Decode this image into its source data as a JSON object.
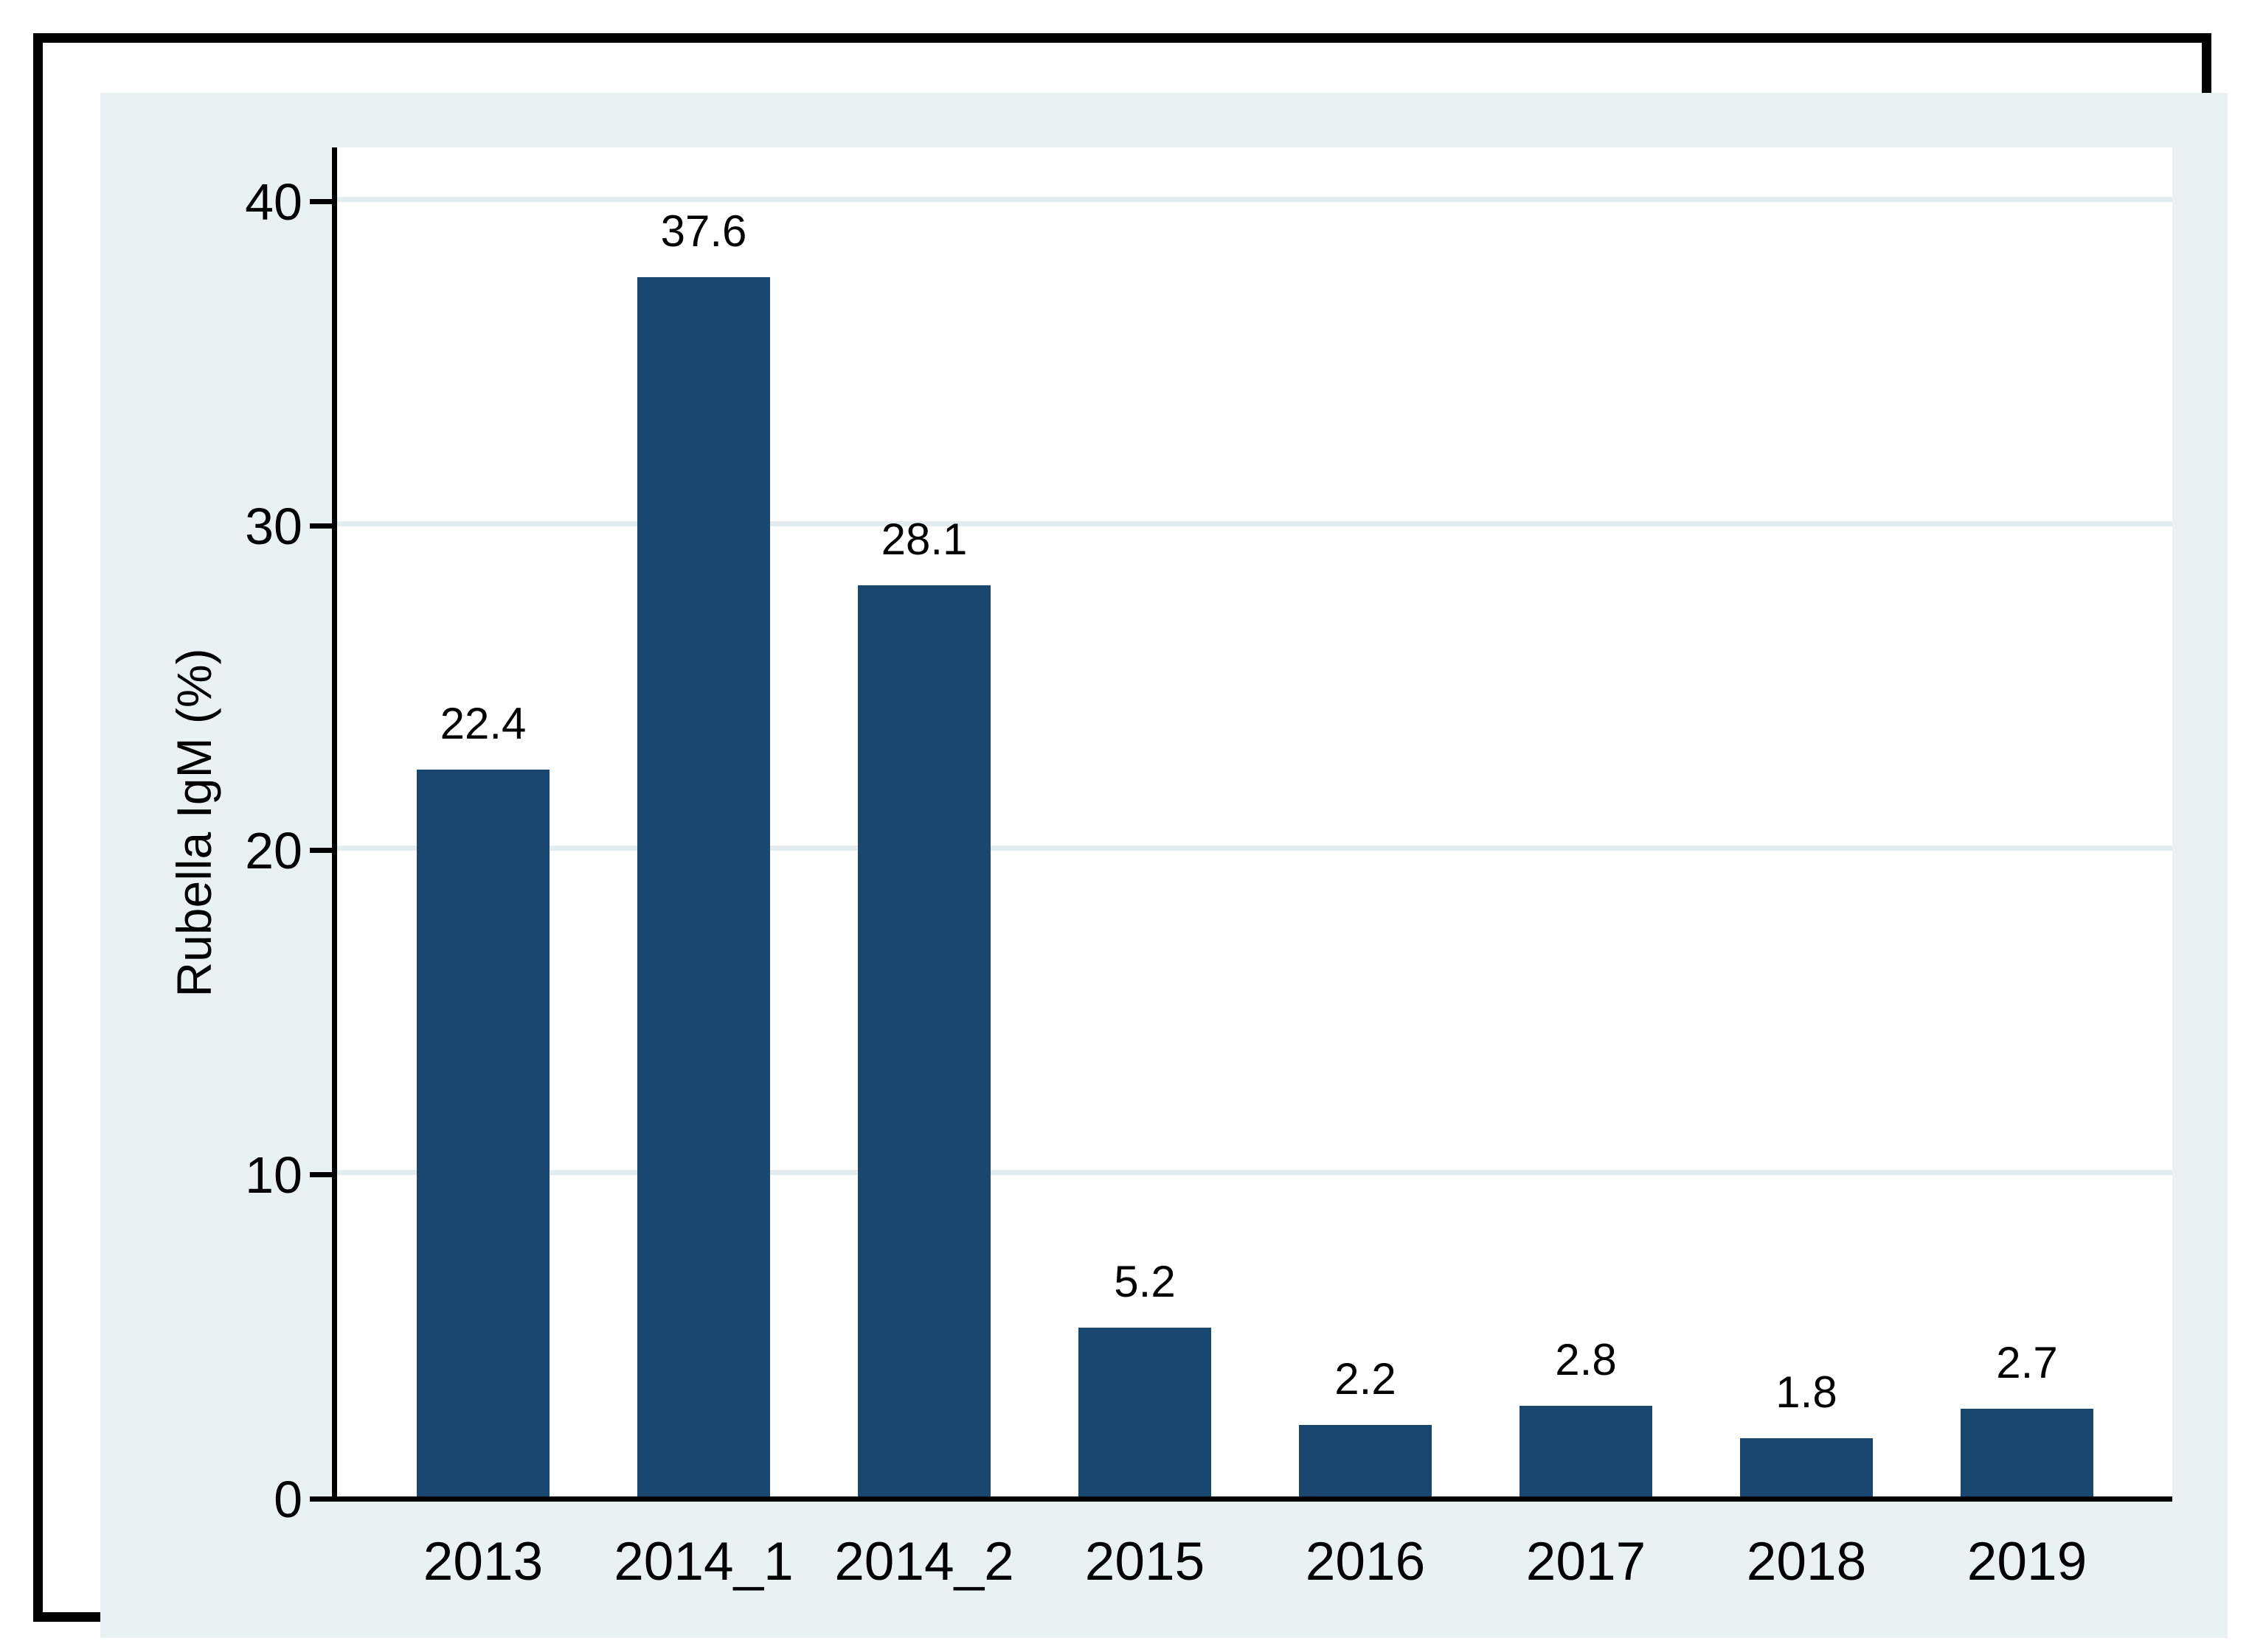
{
  "chart_data": {
    "type": "bar",
    "categories": [
      "2013",
      "2014_1",
      "2014_2",
      "2015",
      "2016",
      "2017",
      "2018",
      "2019"
    ],
    "values": [
      22.4,
      37.6,
      28.1,
      5.2,
      2.2,
      2.8,
      1.8,
      2.7
    ],
    "bar_value_labels": [
      "22.4",
      "37.6",
      "28.1",
      "5.2",
      "2.2",
      "2.8",
      "1.8",
      "2.7"
    ],
    "title": "",
    "xlabel": "",
    "ylabel": "Rubella IgM (%)",
    "y_ticks": [
      0,
      10,
      20,
      30,
      40
    ],
    "gridline_values": [
      10,
      20,
      30,
      40
    ],
    "ylim": [
      0,
      41.6
    ],
    "grid": true,
    "legend_position": "none",
    "colors": {
      "bar": "#1a476f",
      "plot_background": "#ffffff",
      "chart_background": "#eaf1f3",
      "gridline": "#e3edf0",
      "axis": "#000000",
      "text": "#000000",
      "page_background": "#ffffff",
      "border": "#000000"
    }
  }
}
